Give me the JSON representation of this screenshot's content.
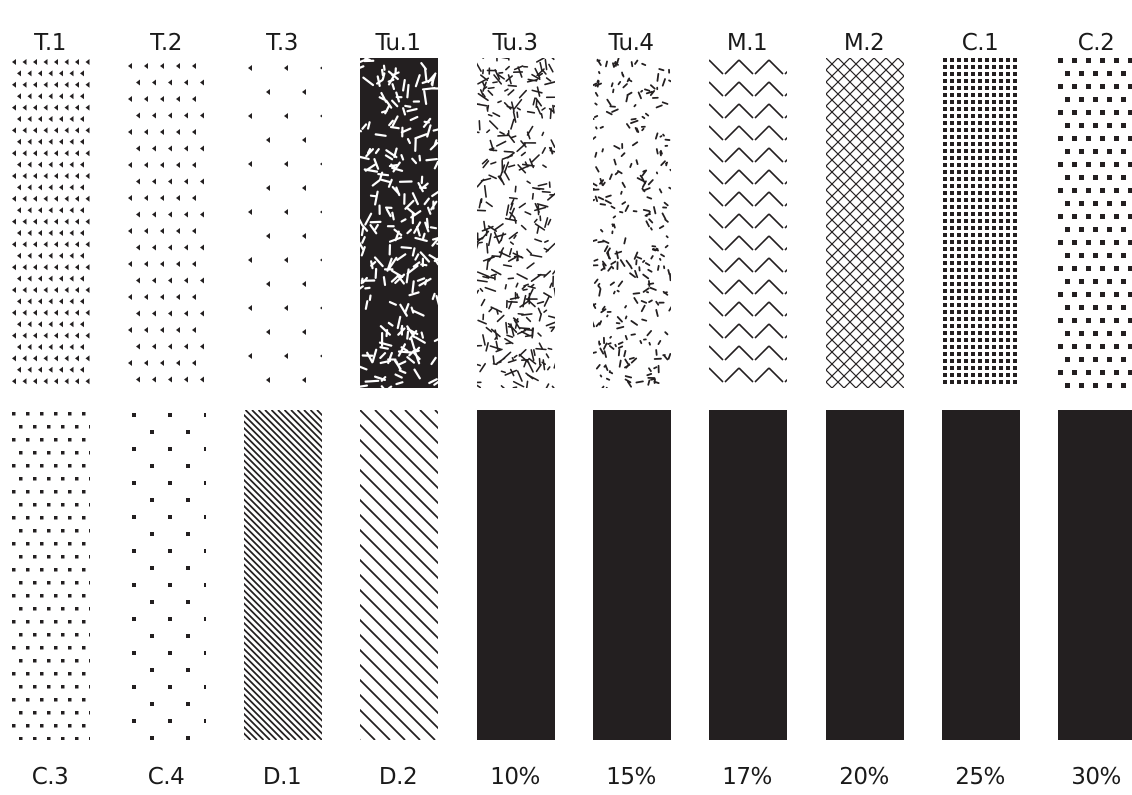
{
  "colors": {
    "ink": "#231f20",
    "background": "#ffffff"
  },
  "top_row": [
    {
      "label": "T.1",
      "pattern": "triangle-grid-dense"
    },
    {
      "label": "T.2",
      "pattern": "triangle-grid-medium"
    },
    {
      "label": "T.3",
      "pattern": "triangle-grid-sparse"
    },
    {
      "label": "Tu.1",
      "pattern": "turing-dense"
    },
    {
      "label": "Tu.3",
      "pattern": "turing-medium"
    },
    {
      "label": "Tu.4",
      "pattern": "turing-light"
    },
    {
      "label": "M.1",
      "pattern": "dash-zigzag-sparse"
    },
    {
      "label": "M.2",
      "pattern": "dash-zigzag-dense"
    },
    {
      "label": "C.1",
      "pattern": "square-grid-dense"
    },
    {
      "label": "C.2",
      "pattern": "square-checker"
    }
  ],
  "bottom_row": [
    {
      "label": "C.3",
      "pattern": "dot-grid"
    },
    {
      "label": "C.4",
      "pattern": "dot-grid-sparse"
    },
    {
      "label": "D.1",
      "pattern": "diagonal-dense"
    },
    {
      "label": "D.2",
      "pattern": "diagonal-sparse"
    },
    {
      "label": "10%",
      "pattern": "solid"
    },
    {
      "label": "15%",
      "pattern": "solid"
    },
    {
      "label": "17%",
      "pattern": "solid"
    },
    {
      "label": "20%",
      "pattern": "solid"
    },
    {
      "label": "25%",
      "pattern": "solid"
    },
    {
      "label": "30%",
      "pattern": "solid"
    }
  ]
}
